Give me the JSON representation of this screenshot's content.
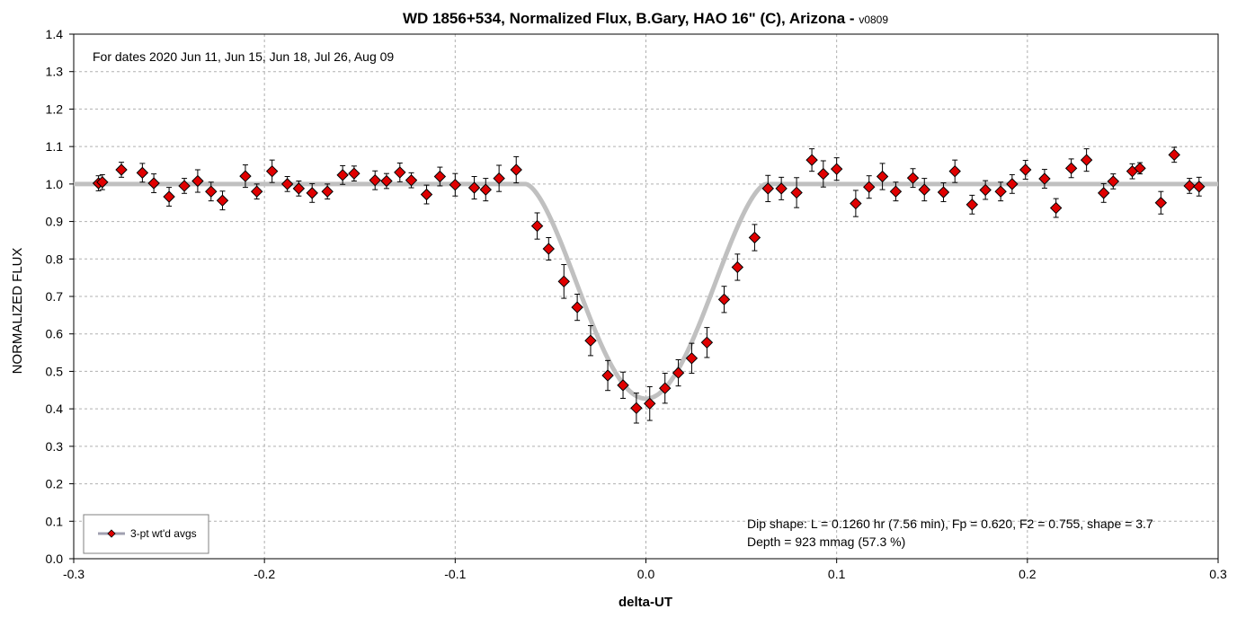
{
  "chart_data": {
    "type": "scatter",
    "title": "WD 1856+534, Normalized Flux, B.Gary, HAO 16\" (C), Arizona - ",
    "title_suffix": "v0809",
    "xlabel": "delta-UT",
    "ylabel": "NORMALIZED FLUX",
    "xlim": [
      -0.3,
      0.3
    ],
    "ylim": [
      0.0,
      1.4
    ],
    "x_ticks": [
      "-0.3",
      "-0.2",
      "-0.1",
      "0.0",
      "0.1",
      "0.2",
      "0.3"
    ],
    "y_ticks": [
      "0.0",
      "0.1",
      "0.2",
      "0.3",
      "0.4",
      "0.5",
      "0.6",
      "0.7",
      "0.8",
      "0.9",
      "1.0",
      "1.1",
      "1.2",
      "1.3",
      "1.4"
    ],
    "grid": true,
    "annotations": {
      "dates": "For dates 2020 Jun 11, Jun 15, Jun 18, Jul 26, Aug 09",
      "dip_shape": "Dip shape:  L = 0.1260 hr (7.56 min), Fp = 0.620, F2 = 0.755, shape = 3.7",
      "depth": "Depth = 923 mmag (57.3 %)"
    },
    "legend": {
      "placement": "bottom-left",
      "entries": [
        "3-pt wt'd avgs"
      ]
    },
    "colors": {
      "marker_fill": "#e00000",
      "marker_edge": "#000000",
      "model_line": "#c0c0c0",
      "grid": "#b0b0b0",
      "legend_line": "#a0a0b0"
    },
    "model": {
      "name": "",
      "baseline": 1.0,
      "minimum": 0.427,
      "x_center": 0.0,
      "full_width": 0.126,
      "bottom_width": 0.0
    },
    "series": [
      {
        "name": "3-pt wt'd avgs",
        "points": [
          [
            -0.287,
            1.002,
            0.02
          ],
          [
            -0.285,
            1.005,
            0.02
          ],
          [
            -0.275,
            1.038,
            0.02
          ],
          [
            -0.264,
            1.03,
            0.025
          ],
          [
            -0.258,
            1.002,
            0.025
          ],
          [
            -0.25,
            0.966,
            0.025
          ],
          [
            -0.242,
            0.995,
            0.02
          ],
          [
            -0.235,
            1.008,
            0.03
          ],
          [
            -0.228,
            0.98,
            0.025
          ],
          [
            -0.222,
            0.956,
            0.025
          ],
          [
            -0.21,
            1.021,
            0.03
          ],
          [
            -0.204,
            0.98,
            0.02
          ],
          [
            -0.196,
            1.034,
            0.03
          ],
          [
            -0.188,
            1.0,
            0.02
          ],
          [
            -0.182,
            0.988,
            0.02
          ],
          [
            -0.175,
            0.976,
            0.025
          ],
          [
            -0.167,
            0.98,
            0.02
          ],
          [
            -0.159,
            1.024,
            0.025
          ],
          [
            -0.153,
            1.028,
            0.02
          ],
          [
            -0.142,
            1.01,
            0.025
          ],
          [
            -0.136,
            1.008,
            0.02
          ],
          [
            -0.129,
            1.031,
            0.025
          ],
          [
            -0.123,
            1.01,
            0.02
          ],
          [
            -0.115,
            0.972,
            0.025
          ],
          [
            -0.108,
            1.02,
            0.025
          ],
          [
            -0.1,
            0.998,
            0.03
          ],
          [
            -0.09,
            0.99,
            0.03
          ],
          [
            -0.084,
            0.985,
            0.03
          ],
          [
            -0.077,
            1.015,
            0.035
          ],
          [
            -0.068,
            1.038,
            0.035
          ],
          [
            -0.057,
            0.888,
            0.035
          ],
          [
            -0.051,
            0.827,
            0.03
          ],
          [
            -0.043,
            0.74,
            0.045
          ],
          [
            -0.036,
            0.671,
            0.035
          ],
          [
            -0.029,
            0.582,
            0.04
          ],
          [
            -0.02,
            0.489,
            0.04
          ],
          [
            -0.012,
            0.463,
            0.035
          ],
          [
            -0.005,
            0.402,
            0.04
          ],
          [
            0.002,
            0.414,
            0.045
          ],
          [
            0.01,
            0.455,
            0.04
          ],
          [
            0.017,
            0.496,
            0.035
          ],
          [
            0.024,
            0.535,
            0.04
          ],
          [
            0.032,
            0.577,
            0.04
          ],
          [
            0.041,
            0.692,
            0.035
          ],
          [
            0.048,
            0.778,
            0.035
          ],
          [
            0.057,
            0.857,
            0.035
          ],
          [
            0.064,
            0.988,
            0.035
          ],
          [
            0.071,
            0.988,
            0.03
          ],
          [
            0.079,
            0.977,
            0.04
          ],
          [
            0.087,
            1.064,
            0.03
          ],
          [
            0.093,
            1.027,
            0.035
          ],
          [
            0.1,
            1.04,
            0.03
          ],
          [
            0.11,
            0.948,
            0.035
          ],
          [
            0.117,
            0.992,
            0.03
          ],
          [
            0.124,
            1.02,
            0.035
          ],
          [
            0.131,
            0.98,
            0.025
          ],
          [
            0.14,
            1.016,
            0.025
          ],
          [
            0.146,
            0.985,
            0.03
          ],
          [
            0.156,
            0.978,
            0.025
          ],
          [
            0.162,
            1.034,
            0.03
          ],
          [
            0.171,
            0.945,
            0.025
          ],
          [
            0.178,
            0.984,
            0.025
          ],
          [
            0.186,
            0.98,
            0.025
          ],
          [
            0.192,
            1.0,
            0.025
          ],
          [
            0.199,
            1.038,
            0.025
          ],
          [
            0.209,
            1.014,
            0.025
          ],
          [
            0.215,
            0.936,
            0.025
          ],
          [
            0.223,
            1.042,
            0.025
          ],
          [
            0.231,
            1.064,
            0.03
          ],
          [
            0.24,
            0.976,
            0.025
          ],
          [
            0.245,
            1.007,
            0.02
          ],
          [
            0.255,
            1.034,
            0.02
          ],
          [
            0.259,
            1.042,
            0.015
          ],
          [
            0.27,
            0.95,
            0.03
          ],
          [
            0.277,
            1.078,
            0.02
          ],
          [
            0.285,
            0.995,
            0.02
          ],
          [
            0.29,
            0.993,
            0.025
          ]
        ]
      }
    ]
  }
}
